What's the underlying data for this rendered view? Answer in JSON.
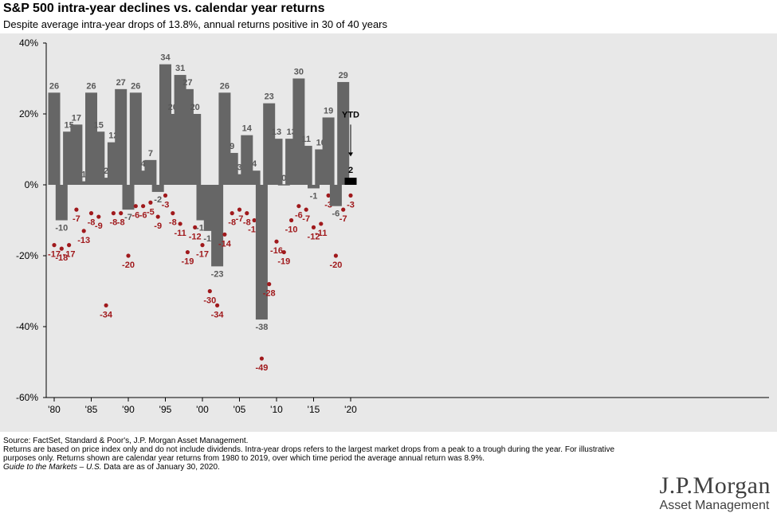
{
  "header": {
    "title": "S&P 500 intra-year declines vs. calendar year returns",
    "subtitle": "Despite average intra-year drops of 13.8%, annual returns positive in 30 of 40 years"
  },
  "chart_data": {
    "type": "bar",
    "years": [
      1980,
      1981,
      1982,
      1983,
      1984,
      1985,
      1986,
      1987,
      1988,
      1989,
      1990,
      1991,
      1992,
      1993,
      1994,
      1995,
      1996,
      1997,
      1998,
      1999,
      2000,
      2001,
      2002,
      2003,
      2004,
      2005,
      2006,
      2007,
      2008,
      2009,
      2010,
      2011,
      2012,
      2013,
      2014,
      2015,
      2016,
      2017,
      2018,
      2019,
      2020
    ],
    "series": [
      {
        "name": "Calendar year return",
        "values": [
          26,
          -10,
          15,
          17,
          1,
          26,
          15,
          2,
          12,
          27,
          -7,
          26,
          4,
          7,
          -2,
          34,
          20,
          31,
          27,
          20,
          -10,
          -13,
          -23,
          26,
          9,
          3,
          14,
          4,
          -38,
          23,
          13,
          0,
          13,
          30,
          11,
          -1,
          10,
          19,
          -6,
          29,
          2
        ],
        "labels": [
          "26",
          "-10",
          "15",
          "17",
          "1",
          "26",
          "15",
          "2",
          "12",
          "27",
          "-7",
          "26",
          "4",
          "7",
          "-2",
          "34",
          "20",
          "31",
          "27",
          "20",
          "-10",
          "-13",
          "-23",
          "26",
          "9",
          "3",
          "14",
          "4",
          "-38",
          "23",
          "13",
          "0",
          "13",
          "30",
          "11",
          "-1",
          "10",
          "19",
          "-6",
          "29",
          "2"
        ],
        "color": "#666666",
        "ytd_color": "#000000"
      },
      {
        "name": "Intra-year decline",
        "values": [
          -17,
          -18,
          -17,
          -7,
          -13,
          -8,
          -9,
          -34,
          -8,
          -8,
          -20,
          -6,
          -6,
          -5,
          -9,
          -3,
          -8,
          -11,
          -19,
          -12,
          -17,
          -30,
          -34,
          -14,
          -8,
          -7,
          -8,
          -10,
          -49,
          -28,
          -16,
          -19,
          -10,
          -6,
          -7,
          -12,
          -11,
          -3,
          -20,
          -7,
          -3
        ],
        "labels": [
          "-17",
          "-18",
          "-17",
          "-7",
          "-13",
          "-8",
          "-9",
          "-34",
          "-8",
          "-8",
          "-20",
          "-6",
          "-6",
          "-5",
          "-9",
          "-3",
          "-8",
          "-11",
          "-19",
          "-12",
          "-17",
          "-30",
          "-34",
          "-14",
          "-8",
          "-7",
          "-8",
          "-10",
          "-49",
          "-28",
          "-16",
          "-19",
          "-10",
          "-6",
          "-7",
          "-12",
          "-11",
          "-3",
          "-20",
          "-7",
          "-3"
        ],
        "color": "#a0191c"
      }
    ],
    "ylim": [
      -60,
      40
    ],
    "yticks": [
      40,
      20,
      0,
      -20,
      -40,
      -60
    ],
    "ytick_labels": [
      "40%",
      "20%",
      "0%",
      "-20%",
      "-40%",
      "-60%"
    ],
    "xtick_years": [
      1980,
      1985,
      1990,
      1995,
      2000,
      2005,
      2010,
      2015,
      2020
    ],
    "xtick_labels": [
      "'80",
      "'85",
      "'90",
      "'95",
      "'00",
      "'05",
      "'10",
      "'15",
      "'20"
    ],
    "ytd_annotation": "YTD",
    "background": "#e8e8e8",
    "grid": false
  },
  "footer": {
    "source": "Source: FactSet, Standard & Poor's, J.P. Morgan Asset Management.",
    "note1": "Returns are based on price index only and do not include dividends. Intra-year drops refers to the largest market drops from a peak to a trough during the year. For illustrative purposes only. Returns shown are calendar year returns from 1980 to 2019, over which time period the average annual return was 8.9%.",
    "guide_italic": "Guide to the Markets – U.S.",
    "guide_rest": " Data are as of January 30, 2020."
  },
  "logo": {
    "main": "J.P.Morgan",
    "sub": "Asset Management"
  }
}
